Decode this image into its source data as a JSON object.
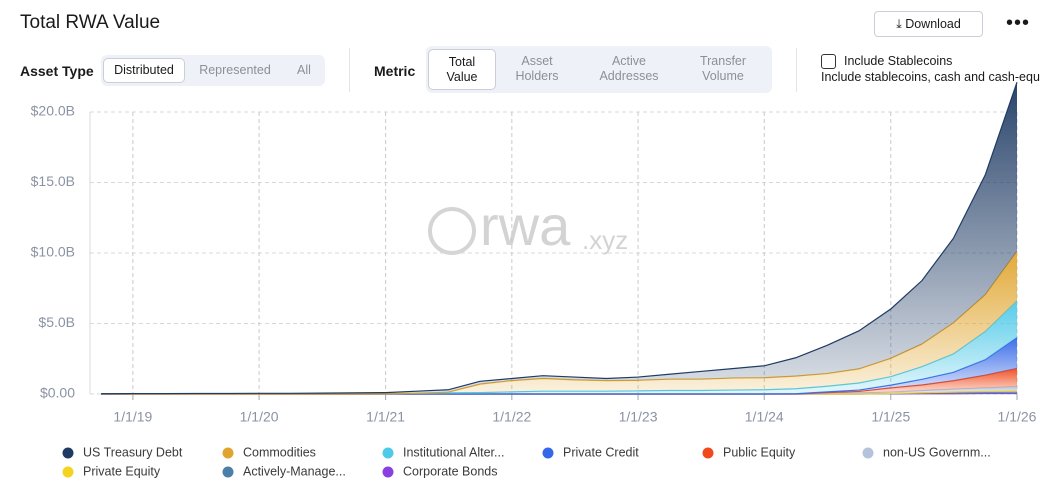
{
  "chart_data": {
    "type": "stacked-area",
    "title": "Total RWA Value",
    "watermark": {
      "name": "rwa",
      "suffix": ".xyz"
    },
    "x": [
      "10/1/18",
      "1/1/19",
      "4/1/19",
      "7/1/19",
      "10/1/19",
      "1/1/20",
      "4/1/20",
      "7/1/20",
      "10/1/20",
      "1/1/21",
      "4/1/21",
      "7/1/21",
      "10/1/21",
      "1/1/22",
      "4/1/22",
      "7/1/22",
      "10/1/22",
      "1/1/23",
      "4/1/23",
      "7/1/23",
      "10/1/23",
      "1/1/24",
      "4/1/24",
      "7/1/24",
      "10/1/24",
      "1/1/25",
      "4/1/25",
      "7/1/25",
      "10/1/25",
      "1/1/26"
    ],
    "xlim": [
      "8/30/18",
      "1/1/26"
    ],
    "xticks": [
      "1/1/19",
      "1/1/20",
      "1/1/21",
      "1/1/22",
      "1/1/23",
      "1/1/24",
      "1/1/25",
      "1/1/26"
    ],
    "ylim": [
      0,
      20
    ],
    "yticks": [
      {
        "value": 0,
        "label": "$0.00"
      },
      {
        "value": 5,
        "label": "$5.0B"
      },
      {
        "value": 10,
        "label": "$10.0B"
      },
      {
        "value": 15,
        "label": "$15.0B"
      },
      {
        "value": 20,
        "label": "$20.0B"
      }
    ],
    "grid": true,
    "series": [
      {
        "name": "US Treasury Debt",
        "color": "#1f3b64",
        "values": [
          0.01,
          0.02,
          0.02,
          0.03,
          0.03,
          0.04,
          0.04,
          0.05,
          0.07,
          0.08,
          0.15,
          0.17,
          0.2,
          0.15,
          0.2,
          0.2,
          0.15,
          0.23,
          0.35,
          0.55,
          0.67,
          0.85,
          1.3,
          2.0,
          2.7,
          3.5,
          4.5,
          6.0,
          8.5,
          12.0
        ]
      },
      {
        "name": "Commodities",
        "color": "#e0a52e",
        "values": [
          0,
          0,
          0,
          0,
          0,
          0,
          0,
          0,
          0,
          0,
          0,
          0.05,
          0.6,
          0.8,
          0.9,
          0.8,
          0.75,
          0.75,
          0.8,
          0.8,
          0.85,
          0.85,
          0.9,
          0.9,
          1.0,
          1.3,
          1.6,
          2.2,
          2.6,
          3.5
        ]
      },
      {
        "name": "Institutional Alter...",
        "color": "#4fc9e8",
        "values": [
          0.01,
          0.01,
          0.01,
          0.01,
          0.01,
          0.01,
          0.01,
          0.01,
          0.01,
          0.02,
          0.05,
          0.08,
          0.1,
          0.15,
          0.2,
          0.2,
          0.2,
          0.22,
          0.25,
          0.25,
          0.28,
          0.3,
          0.35,
          0.4,
          0.5,
          0.6,
          0.9,
          1.3,
          2.0,
          2.6
        ]
      },
      {
        "name": "Private Credit",
        "color": "#3568e8",
        "values": [
          0,
          0,
          0,
          0,
          0,
          0,
          0,
          0,
          0,
          0,
          0,
          0,
          0,
          0,
          0,
          0,
          0,
          0,
          0,
          0,
          0,
          0,
          0.02,
          0.05,
          0.1,
          0.2,
          0.4,
          0.6,
          1.1,
          2.2
        ]
      },
      {
        "name": "Public Equity",
        "color": "#f04a1c",
        "values": [
          0,
          0,
          0,
          0,
          0,
          0,
          0,
          0,
          0,
          0,
          0,
          0,
          0,
          0,
          0,
          0,
          0,
          0,
          0,
          0,
          0,
          0,
          0,
          0.05,
          0.1,
          0.3,
          0.4,
          0.6,
          0.9,
          1.3
        ]
      },
      {
        "name": "non-US Governm...",
        "color": "#b4c3db",
        "values": [
          0,
          0,
          0,
          0,
          0,
          0,
          0,
          0,
          0,
          0,
          0,
          0,
          0,
          0,
          0,
          0,
          0,
          0,
          0,
          0,
          0,
          0,
          0,
          0.05,
          0.08,
          0.1,
          0.15,
          0.2,
          0.25,
          0.3
        ]
      },
      {
        "name": "Private Equity",
        "color": "#f5d31e",
        "values": [
          0,
          0,
          0,
          0,
          0,
          0,
          0,
          0,
          0,
          0,
          0,
          0,
          0,
          0,
          0,
          0,
          0,
          0,
          0,
          0,
          0,
          0,
          0,
          0,
          0,
          0,
          0.02,
          0.04,
          0.05,
          0.06
        ]
      },
      {
        "name": "Actively-Manage...",
        "color": "#4a7fa8",
        "values": [
          0,
          0,
          0,
          0,
          0,
          0,
          0,
          0,
          0,
          0,
          0,
          0,
          0,
          0,
          0,
          0,
          0,
          0,
          0,
          0,
          0,
          0,
          0,
          0,
          0,
          0.02,
          0.05,
          0.08,
          0.1,
          0.12
        ]
      },
      {
        "name": "Corporate Bonds",
        "color": "#8a3fe0",
        "values": [
          0,
          0,
          0,
          0,
          0,
          0,
          0,
          0,
          0,
          0,
          0,
          0,
          0,
          0,
          0,
          0,
          0,
          0,
          0,
          0,
          0,
          0,
          0,
          0,
          0,
          0.01,
          0.02,
          0.02,
          0.03,
          0.03
        ]
      }
    ]
  },
  "header": {
    "download": "Download"
  },
  "controls": {
    "asset_type": {
      "label": "Asset Type",
      "options": [
        "Distributed",
        "Represented",
        "All"
      ]
    },
    "metric": {
      "label": "Metric",
      "options": [
        [
          "Total",
          "Value"
        ],
        [
          "Asset",
          "Holders"
        ],
        [
          "Active",
          "Addresses"
        ],
        [
          "Transfer",
          "Volume"
        ]
      ]
    },
    "stablecoins": {
      "label": "Include Stablecoins",
      "description": "Include stablecoins, cash and cash-equ"
    }
  }
}
